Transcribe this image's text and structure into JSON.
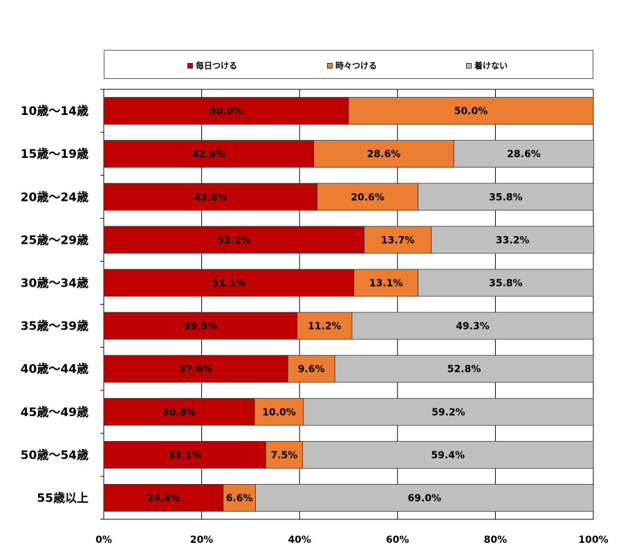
{
  "chart_data": {
    "type": "bar",
    "orientation": "horizontal",
    "stacked": "percent",
    "categories": [
      "10歳～14歳",
      "15歳～19歳",
      "20歳～24歳",
      "25歳～29歳",
      "30歳～34歳",
      "35歳～39歳",
      "40歳～44歳",
      "45歳～49歳",
      "50歳～54歳",
      "55歳以上"
    ],
    "series": [
      {
        "name": "毎日つける",
        "color": "#C00000",
        "values": [
          50.0,
          42.9,
          43.6,
          53.2,
          51.1,
          39.5,
          37.6,
          30.8,
          33.1,
          24.4
        ]
      },
      {
        "name": "時々つける",
        "color": "#ED7D31",
        "values": [
          50.0,
          28.6,
          20.6,
          13.7,
          13.1,
          11.2,
          9.6,
          10.0,
          7.5,
          6.6
        ]
      },
      {
        "name": "着けない",
        "color": "#BFBFBF",
        "values": [
          0.0,
          28.6,
          35.8,
          33.2,
          35.8,
          49.3,
          52.8,
          59.2,
          59.4,
          69.0
        ]
      }
    ],
    "value_labels": [
      [
        "50.0%",
        "50.0%",
        ""
      ],
      [
        "42.9%",
        "28.6%",
        "28.6%"
      ],
      [
        "43.6%",
        "20.6%",
        "35.8%"
      ],
      [
        "53.2%",
        "13.7%",
        "33.2%"
      ],
      [
        "51.1%",
        "13.1%",
        "35.8%"
      ],
      [
        "39.5%",
        "11.2%",
        "49.3%"
      ],
      [
        "37.6%",
        "9.6%",
        "52.8%"
      ],
      [
        "30.8%",
        "10.0%",
        "59.2%"
      ],
      [
        "33.1%",
        "7.5%",
        "59.4%"
      ],
      [
        "24.4%",
        "6.6%",
        "69.0%"
      ]
    ],
    "xlim": [
      0,
      100
    ],
    "x_ticks": [
      0,
      20,
      40,
      60,
      80,
      100
    ],
    "x_tick_labels": [
      "0%",
      "20%",
      "40%",
      "60%",
      "80%",
      "100%"
    ],
    "grid": "vertical",
    "legend_position": "top"
  }
}
